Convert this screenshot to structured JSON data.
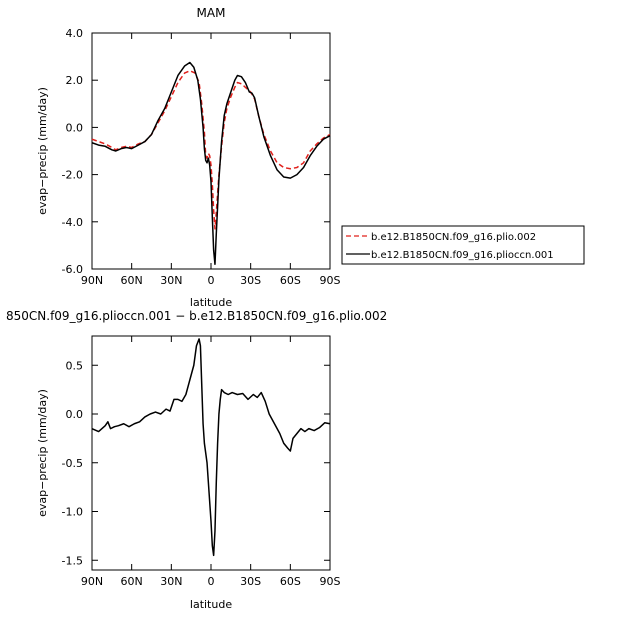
{
  "chart_data": [
    {
      "type": "line",
      "title": "MAM",
      "xlabel": "latitude",
      "ylabel": "evap−precip (mm/day)",
      "xlim": [
        -90,
        90
      ],
      "ylim": [
        -6,
        4
      ],
      "x_ticks": [
        -90,
        -60,
        -30,
        0,
        30,
        60,
        90
      ],
      "x_tick_labels": [
        "90N",
        "60N",
        "30N",
        "0",
        "30S",
        "60S",
        "90S"
      ],
      "y_ticks": [
        -6,
        -4,
        -2,
        0,
        2,
        4
      ],
      "y_tick_labels": [
        "-6.0",
        "-4.0",
        "-2.0",
        "0.0",
        "2.0",
        "4.0"
      ],
      "legend_position": "right",
      "series": [
        {
          "name": "b.e12.B1850CN.f09_g16.plio.002",
          "color": "#e0201b",
          "dash": "dashed",
          "points": [
            [
              -90,
              -0.5
            ],
            [
              -85,
              -0.6
            ],
            [
              -80,
              -0.7
            ],
            [
              -75,
              -0.85
            ],
            [
              -72,
              -0.95
            ],
            [
              -68,
              -0.85
            ],
            [
              -64,
              -0.8
            ],
            [
              -60,
              -0.85
            ],
            [
              -55,
              -0.7
            ],
            [
              -50,
              -0.6
            ],
            [
              -45,
              -0.3
            ],
            [
              -40,
              0.2
            ],
            [
              -35,
              0.7
            ],
            [
              -30,
              1.3
            ],
            [
              -25,
              1.9
            ],
            [
              -20,
              2.3
            ],
            [
              -16,
              2.4
            ],
            [
              -12,
              2.3
            ],
            [
              -9,
              1.9
            ],
            [
              -7,
              1.0
            ],
            [
              -5,
              -0.2
            ],
            [
              -4,
              -1.2
            ],
            [
              -3,
              -1.3
            ],
            [
              -2,
              -1.1
            ],
            [
              -1,
              -1.2
            ],
            [
              0,
              -1.6
            ],
            [
              1,
              -2.4
            ],
            [
              2,
              -3.5
            ],
            [
              3,
              -4.3
            ],
            [
              4,
              -3.6
            ],
            [
              6,
              -2.0
            ],
            [
              8,
              -0.8
            ],
            [
              10,
              0.2
            ],
            [
              12,
              0.8
            ],
            [
              15,
              1.3
            ],
            [
              18,
              1.7
            ],
            [
              20,
              1.9
            ],
            [
              23,
              1.85
            ],
            [
              26,
              1.7
            ],
            [
              30,
              1.5
            ],
            [
              33,
              1.2
            ],
            [
              36,
              0.5
            ],
            [
              40,
              -0.3
            ],
            [
              45,
              -1.0
            ],
            [
              50,
              -1.5
            ],
            [
              55,
              -1.7
            ],
            [
              60,
              -1.75
            ],
            [
              65,
              -1.7
            ],
            [
              70,
              -1.5
            ],
            [
              75,
              -1.0
            ],
            [
              80,
              -0.7
            ],
            [
              85,
              -0.45
            ],
            [
              90,
              -0.3
            ]
          ]
        },
        {
          "name": "b.e12.B1850CN.f09_g16.plioccn.001",
          "color": "#000000",
          "dash": "solid",
          "points": [
            [
              -90,
              -0.65
            ],
            [
              -85,
              -0.75
            ],
            [
              -80,
              -0.8
            ],
            [
              -75,
              -0.95
            ],
            [
              -72,
              -1.0
            ],
            [
              -68,
              -0.9
            ],
            [
              -64,
              -0.85
            ],
            [
              -60,
              -0.9
            ],
            [
              -55,
              -0.75
            ],
            [
              -50,
              -0.6
            ],
            [
              -45,
              -0.3
            ],
            [
              -40,
              0.3
            ],
            [
              -35,
              0.8
            ],
            [
              -30,
              1.5
            ],
            [
              -25,
              2.2
            ],
            [
              -20,
              2.6
            ],
            [
              -16,
              2.75
            ],
            [
              -13,
              2.55
            ],
            [
              -10,
              2.0
            ],
            [
              -8,
              1.2
            ],
            [
              -6,
              0.0
            ],
            [
              -5,
              -0.9
            ],
            [
              -4,
              -1.4
            ],
            [
              -3,
              -1.5
            ],
            [
              -2,
              -1.3
            ],
            [
              -1,
              -1.6
            ],
            [
              0,
              -2.3
            ],
            [
              1,
              -3.8
            ],
            [
              2,
              -5.2
            ],
            [
              3,
              -5.8
            ],
            [
              4,
              -4.5
            ],
            [
              6,
              -2.2
            ],
            [
              8,
              -0.6
            ],
            [
              10,
              0.5
            ],
            [
              12,
              1.0
            ],
            [
              15,
              1.5
            ],
            [
              18,
              2.0
            ],
            [
              20,
              2.2
            ],
            [
              23,
              2.15
            ],
            [
              26,
              1.9
            ],
            [
              29,
              1.5
            ],
            [
              31,
              1.45
            ],
            [
              33,
              1.25
            ],
            [
              36,
              0.5
            ],
            [
              40,
              -0.4
            ],
            [
              45,
              -1.2
            ],
            [
              50,
              -1.8
            ],
            [
              55,
              -2.1
            ],
            [
              60,
              -2.15
            ],
            [
              65,
              -2.0
            ],
            [
              70,
              -1.7
            ],
            [
              75,
              -1.2
            ],
            [
              80,
              -0.8
            ],
            [
              85,
              -0.5
            ],
            [
              90,
              -0.35
            ]
          ]
        }
      ]
    },
    {
      "type": "line",
      "title": "850CN.f09_g16.plioccn.001 − b.e12.B1850CN.f09_g16.plio.002",
      "xlabel": "latitude",
      "ylabel": "evap−precip (mm/day)",
      "xlim": [
        -90,
        90
      ],
      "ylim": [
        -1.6,
        0.8
      ],
      "x_ticks": [
        -90,
        -60,
        -30,
        0,
        30,
        60,
        90
      ],
      "x_tick_labels": [
        "90N",
        "60N",
        "30N",
        "0",
        "30S",
        "60S",
        "90S"
      ],
      "y_ticks": [
        -1.5,
        -1.0,
        -0.5,
        0.0,
        0.5
      ],
      "y_tick_labels": [
        "-1.5",
        "-1.0",
        "-0.5",
        "0.0",
        "0.5"
      ],
      "series": [
        {
          "color": "#000000",
          "dash": "solid",
          "points": [
            [
              -90,
              -0.15
            ],
            [
              -85,
              -0.18
            ],
            [
              -80,
              -0.12
            ],
            [
              -78,
              -0.08
            ],
            [
              -76,
              -0.15
            ],
            [
              -73,
              -0.13
            ],
            [
              -70,
              -0.12
            ],
            [
              -66,
              -0.1
            ],
            [
              -62,
              -0.13
            ],
            [
              -58,
              -0.1
            ],
            [
              -54,
              -0.08
            ],
            [
              -50,
              -0.03
            ],
            [
              -46,
              0.0
            ],
            [
              -42,
              0.02
            ],
            [
              -38,
              0.0
            ],
            [
              -34,
              0.05
            ],
            [
              -31,
              0.03
            ],
            [
              -28,
              0.15
            ],
            [
              -25,
              0.15
            ],
            [
              -22,
              0.13
            ],
            [
              -19,
              0.2
            ],
            [
              -16,
              0.35
            ],
            [
              -13,
              0.5
            ],
            [
              -11,
              0.7
            ],
            [
              -9,
              0.77
            ],
            [
              -8,
              0.7
            ],
            [
              -7,
              0.3
            ],
            [
              -6,
              -0.1
            ],
            [
              -5,
              -0.3
            ],
            [
              -4,
              -0.4
            ],
            [
              -3,
              -0.5
            ],
            [
              -2,
              -0.7
            ],
            [
              -1,
              -0.9
            ],
            [
              0,
              -1.1
            ],
            [
              1,
              -1.35
            ],
            [
              2,
              -1.45
            ],
            [
              3,
              -1.2
            ],
            [
              4,
              -0.7
            ],
            [
              5,
              -0.3
            ],
            [
              6,
              0.0
            ],
            [
              7,
              0.15
            ],
            [
              8,
              0.25
            ],
            [
              10,
              0.22
            ],
            [
              13,
              0.2
            ],
            [
              16,
              0.22
            ],
            [
              20,
              0.2
            ],
            [
              24,
              0.21
            ],
            [
              28,
              0.15
            ],
            [
              32,
              0.2
            ],
            [
              35,
              0.17
            ],
            [
              38,
              0.22
            ],
            [
              41,
              0.13
            ],
            [
              44,
              0.0
            ],
            [
              48,
              -0.1
            ],
            [
              52,
              -0.2
            ],
            [
              55,
              -0.3
            ],
            [
              58,
              -0.35
            ],
            [
              60,
              -0.38
            ],
            [
              62,
              -0.25
            ],
            [
              65,
              -0.2
            ],
            [
              68,
              -0.15
            ],
            [
              71,
              -0.18
            ],
            [
              74,
              -0.15
            ],
            [
              78,
              -0.17
            ],
            [
              82,
              -0.14
            ],
            [
              86,
              -0.09
            ],
            [
              90,
              -0.1
            ]
          ]
        }
      ]
    }
  ]
}
